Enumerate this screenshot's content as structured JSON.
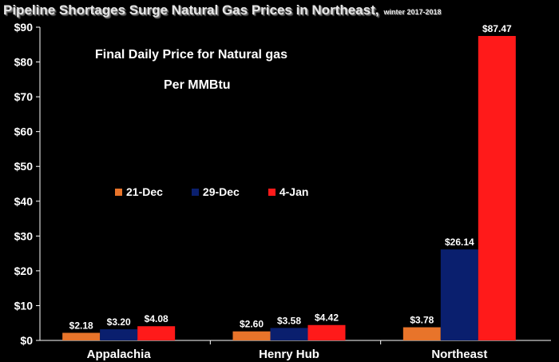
{
  "title": "Pipeline Shortages Surge Natural Gas Prices in Northeast,",
  "title_note": "winter 2017-2018",
  "annotation_line1": "Final Daily Price for Natural gas",
  "annotation_line2": "Per MMBtu",
  "colors": {
    "21-Dec": "#e8742a",
    "29-Dec": "#0a1f6e",
    "4-Jan": "#ff1a1a",
    "background": "#000000",
    "text": "#ffffff"
  },
  "legend": [
    {
      "label": "21-Dec",
      "color": "#e8742a"
    },
    {
      "label": "29-Dec",
      "color": "#0a1f6e"
    },
    {
      "label": "4-Jan",
      "color": "#ff1a1a"
    }
  ],
  "chart_data": {
    "type": "bar",
    "categories": [
      "Appalachia",
      "Henry Hub",
      "Northeast"
    ],
    "series": [
      {
        "name": "21-Dec",
        "values": [
          2.18,
          2.6,
          3.78
        ],
        "labels": [
          "$2.18",
          "$2.60",
          "$3.78"
        ]
      },
      {
        "name": "29-Dec",
        "values": [
          3.2,
          3.58,
          26.14
        ],
        "labels": [
          "$3.20",
          "$3.58",
          "$26.14"
        ]
      },
      {
        "name": "4-Jan",
        "values": [
          4.08,
          4.42,
          87.47
        ],
        "labels": [
          "$4.08",
          "$4.42",
          "$87.47"
        ]
      }
    ],
    "yticks": [
      "$0",
      "$10",
      "$20",
      "$30",
      "$40",
      "$50",
      "$60",
      "$70",
      "$80",
      "$90"
    ],
    "ylim": [
      0,
      90
    ],
    "legend_position": "center-left",
    "grid": false
  }
}
